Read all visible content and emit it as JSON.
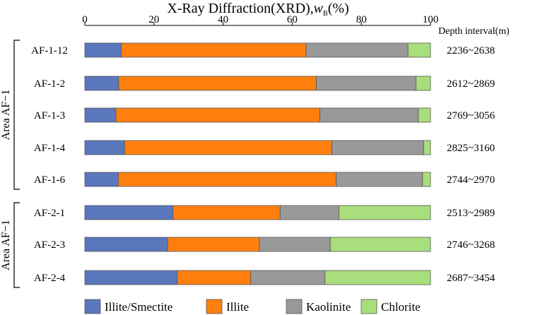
{
  "chart_data": {
    "type": "bar",
    "orientation": "horizontal-stacked",
    "title_prefix": "X-Ray Diffraction(XRD),",
    "title_var": "w",
    "title_sub": "B",
    "title_suffix": "(%)",
    "xlim": [
      0,
      100
    ],
    "xticks": [
      0,
      20,
      40,
      60,
      80,
      100
    ],
    "right_header": "Depth interval(m)",
    "categories": [
      "AF-1-12",
      "AF-1-2",
      "AF-1-3",
      "AF-1-4",
      "AF-1-6",
      "AF-2-1",
      "AF-2-3",
      "AF-2-4"
    ],
    "depths": [
      "2236~2638",
      "2612~2869",
      "2769~3056",
      "2825~3160",
      "2744~2970",
      "2513~2989",
      "2746~3268",
      "2687~3454"
    ],
    "groups": [
      {
        "label": "Area AF−1",
        "members": [
          "AF-1-12",
          "AF-1-2",
          "AF-1-3",
          "AF-1-4",
          "AF-1-6"
        ]
      },
      {
        "label": "Area AF−1",
        "members": [
          "AF-2-1",
          "AF-2-3",
          "AF-2-4"
        ]
      }
    ],
    "series": [
      {
        "name": "Illite/Smectite",
        "color": "#5B77BD",
        "values": [
          10.5,
          9.8,
          9,
          11.5,
          9.7,
          25.5,
          24,
          26.8
        ]
      },
      {
        "name": "Illite",
        "color": "#FF7F0E",
        "values": [
          53.5,
          57.2,
          59,
          60,
          63,
          31,
          26.5,
          21.2
        ]
      },
      {
        "name": "Kaolinite",
        "color": "#999999",
        "values": [
          29.5,
          28.8,
          28.5,
          26.5,
          25,
          17,
          20.5,
          21.5
        ]
      },
      {
        "name": "Chlorite",
        "color": "#A9DE7C",
        "values": [
          6.5,
          4.2,
          3.5,
          2,
          2.3,
          26.5,
          29,
          30.5
        ]
      }
    ]
  }
}
